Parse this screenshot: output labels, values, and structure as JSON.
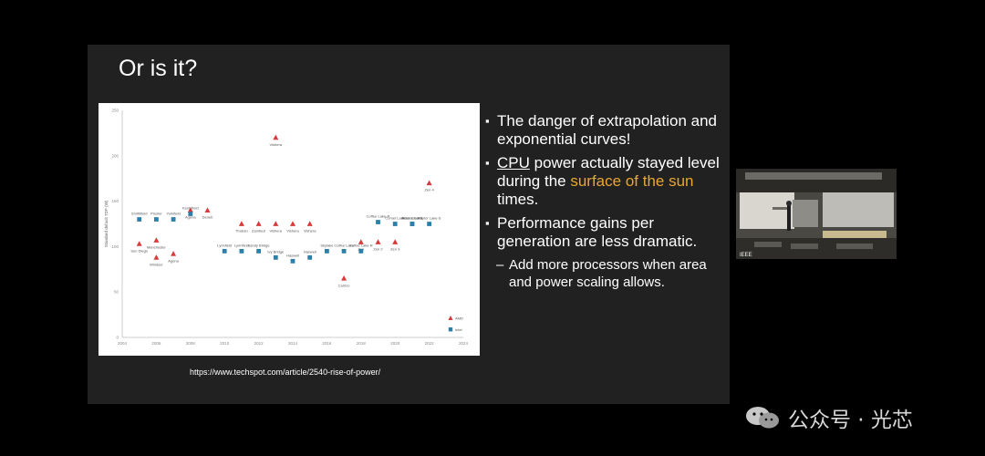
{
  "slide": {
    "title": "Or is it?",
    "bullets": [
      {
        "parts": [
          {
            "text": "The danger of extrapolation and exponential curves!"
          }
        ]
      },
      {
        "parts": [
          {
            "text": "CPU",
            "style": "underline"
          },
          {
            "text": " power actually stayed level during the "
          },
          {
            "text": "surface of the sun",
            "style": "highlight"
          },
          {
            "text": " times."
          }
        ]
      },
      {
        "parts": [
          {
            "text": "Performance gains per generation are less dramatic."
          }
        ]
      }
    ],
    "sub_bullet": {
      "dash": "–",
      "text": "Add more processors when area and power scaling allows."
    },
    "source": "https://www.techspot.com/article/2540-rise-of-power/"
  },
  "chart_data": {
    "type": "scatter",
    "ylabel": "Standard default TDP (W)",
    "xlim": [
      2004,
      2024
    ],
    "ylim": [
      0,
      250
    ],
    "xticks": [
      2004,
      2006,
      2008,
      2010,
      2012,
      2014,
      2016,
      2018,
      2020,
      2022,
      2024
    ],
    "yticks": [
      0,
      50,
      100,
      150,
      200,
      250
    ],
    "series": [
      {
        "name": "AMD",
        "marker": "triangle",
        "color": "#d63a3a",
        "points": [
          {
            "x": 2005.0,
            "y": 103,
            "label": "Sun Diego"
          },
          {
            "x": 2006.0,
            "y": 107,
            "label": "Manchester"
          },
          {
            "x": 2006.0,
            "y": 88,
            "label": "Windsor"
          },
          {
            "x": 2007.0,
            "y": 92,
            "label": "Agena"
          },
          {
            "x": 2008.0,
            "y": 140,
            "label": "Agena"
          },
          {
            "x": 2009.0,
            "y": 140,
            "label": "Deneb"
          },
          {
            "x": 2011.0,
            "y": 125,
            "label": "Thuban"
          },
          {
            "x": 2012.0,
            "y": 125,
            "label": "Zambezi"
          },
          {
            "x": 2013.0,
            "y": 125,
            "label": "Vishera"
          },
          {
            "x": 2013.0,
            "y": 220,
            "label": "Vishera"
          },
          {
            "x": 2014.0,
            "y": 125,
            "label": "Vishera"
          },
          {
            "x": 2015.0,
            "y": 125,
            "label": "Vishera"
          },
          {
            "x": 2017.0,
            "y": 65,
            "label": "Carrizo"
          },
          {
            "x": 2018.0,
            "y": 105,
            "label": "Zen"
          },
          {
            "x": 2019.0,
            "y": 105,
            "label": "Zen 2"
          },
          {
            "x": 2020.0,
            "y": 105,
            "label": "Zen 3"
          },
          {
            "x": 2022.0,
            "y": 170,
            "label": "Zen 4"
          }
        ]
      },
      {
        "name": "Intel",
        "marker": "square",
        "color": "#2c7fa8",
        "points": [
          {
            "x": 2005.0,
            "y": 130,
            "label": "Smithfield"
          },
          {
            "x": 2006.0,
            "y": 130,
            "label": "Presler"
          },
          {
            "x": 2007.0,
            "y": 130,
            "label": "Yorkfield"
          },
          {
            "x": 2008.0,
            "y": 136,
            "label": "Kentsfield"
          },
          {
            "x": 2010.0,
            "y": 95,
            "label": "Lynnfield"
          },
          {
            "x": 2011.0,
            "y": 95,
            "label": "Lynnfield"
          },
          {
            "x": 2012.0,
            "y": 95,
            "label": "Sandy Bridge"
          },
          {
            "x": 2013.0,
            "y": 88,
            "label": "Ivy Bridge"
          },
          {
            "x": 2014.0,
            "y": 84,
            "label": "Haswell"
          },
          {
            "x": 2015.0,
            "y": 88,
            "label": "Haswell"
          },
          {
            "x": 2016.0,
            "y": 95,
            "label": "Skylake"
          },
          {
            "x": 2017.0,
            "y": 95,
            "label": "Coffee Lake"
          },
          {
            "x": 2018.0,
            "y": 95,
            "label": "Coffee Lake-R"
          },
          {
            "x": 2019.0,
            "y": 127,
            "label": "Coffee Lake-R"
          },
          {
            "x": 2020.0,
            "y": 125,
            "label": "Comet Lake"
          },
          {
            "x": 2021.0,
            "y": 125,
            "label": "Rocket Lake"
          },
          {
            "x": 2021.0,
            "y": 125,
            "label": "Alder Lake-S"
          },
          {
            "x": 2022.0,
            "y": 125,
            "label": "Raptor Lake-S"
          }
        ]
      }
    ]
  },
  "video": {
    "overlay_text": "IEEE"
  },
  "watermark": {
    "text": "公众号 · 光芯",
    "icon": "wechat-icon"
  }
}
